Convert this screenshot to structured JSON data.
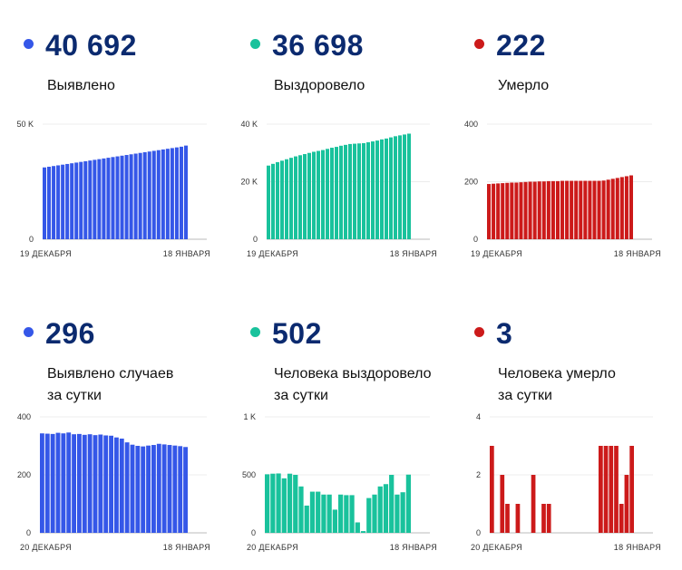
{
  "colors": {
    "blue": "#3557e8",
    "teal": "#19c29c",
    "red": "#cc1a1a"
  },
  "chart_data": [
    {
      "type": "bar",
      "id": "c1",
      "color": "#3557e8",
      "big": "40 692",
      "label_lines": [
        "Выявлено"
      ],
      "ylim": [
        0,
        50000
      ],
      "yticks": [
        {
          "v": 50000,
          "t": "50 K"
        },
        {
          "v": 0,
          "t": "0"
        }
      ],
      "x_start": "19 ДЕКАБРЯ",
      "x_end": "18 ЯНВАРЯ",
      "values": [
        31200,
        31500,
        31800,
        32100,
        32400,
        32700,
        33000,
        33300,
        33600,
        33900,
        34200,
        34500,
        34800,
        35100,
        35400,
        35700,
        36000,
        36300,
        36600,
        36900,
        37200,
        37500,
        37800,
        38100,
        38400,
        38700,
        39000,
        39300,
        39600,
        39900,
        40200,
        40692
      ]
    },
    {
      "type": "bar",
      "id": "c2",
      "color": "#19c29c",
      "big": "36 698",
      "label_lines": [
        "Выздоровело"
      ],
      "ylim": [
        0,
        40000
      ],
      "yticks": [
        {
          "v": 40000,
          "t": "40 K"
        },
        {
          "v": 20000,
          "t": "20 K"
        },
        {
          "v": 0,
          "t": "0"
        }
      ],
      "x_start": "19 ДЕКАБРЯ",
      "x_end": "18 ЯНВАРЯ",
      "values": [
        25600,
        26200,
        26800,
        27300,
        27800,
        28300,
        28800,
        29200,
        29600,
        30000,
        30400,
        30700,
        31000,
        31400,
        31800,
        32100,
        32500,
        32800,
        33100,
        33200,
        33300,
        33400,
        33700,
        34000,
        34300,
        34700,
        35000,
        35400,
        35800,
        36100,
        36400,
        36698
      ]
    },
    {
      "type": "bar",
      "id": "c3",
      "color": "#cc1a1a",
      "big": "222",
      "label_lines": [
        "Умерло"
      ],
      "ylim": [
        0,
        400
      ],
      "yticks": [
        {
          "v": 400,
          "t": "400"
        },
        {
          "v": 200,
          "t": "200"
        },
        {
          "v": 0,
          "t": "0"
        }
      ],
      "x_start": "19 ДЕКАБРЯ",
      "x_end": "18 ЯНВАРЯ",
      "values": [
        192,
        193,
        194,
        195,
        196,
        197,
        197,
        198,
        199,
        200,
        200,
        201,
        201,
        202,
        202,
        202,
        203,
        203,
        203,
        203,
        203,
        203,
        203,
        203,
        203,
        204,
        207,
        210,
        213,
        216,
        219,
        222
      ]
    },
    {
      "type": "bar",
      "id": "c4",
      "color": "#3557e8",
      "big": "296",
      "label_lines": [
        "Выявлено случаев",
        "за сутки"
      ],
      "ylim": [
        0,
        400
      ],
      "yticks": [
        {
          "v": 400,
          "t": "400"
        },
        {
          "v": 200,
          "t": "200"
        },
        {
          "v": 0,
          "t": "0"
        }
      ],
      "x_start": "20 ДЕКАБРЯ",
      "x_end": "18 ЯНВАРЯ",
      "values": [
        343,
        342,
        341,
        345,
        343,
        346,
        340,
        341,
        338,
        340,
        337,
        339,
        336,
        335,
        329,
        325,
        312,
        304,
        300,
        298,
        301,
        303,
        307,
        305,
        303,
        301,
        299,
        296
      ]
    },
    {
      "type": "bar",
      "id": "c5",
      "color": "#19c29c",
      "big": "502",
      "label_lines": [
        "Человека выздоровело",
        "за сутки"
      ],
      "ylim": [
        0,
        1000
      ],
      "yticks": [
        {
          "v": 1000,
          "t": "1 K"
        },
        {
          "v": 500,
          "t": "500"
        },
        {
          "v": 0,
          "t": "0"
        }
      ],
      "x_start": "20 ДЕКАБРЯ",
      "x_end": "18 ЯНВАРЯ",
      "values": [
        505,
        510,
        512,
        470,
        510,
        500,
        400,
        235,
        355,
        355,
        330,
        330,
        200,
        330,
        325,
        325,
        90,
        15,
        300,
        330,
        400,
        420,
        500,
        330,
        350,
        502
      ]
    },
    {
      "type": "bar",
      "id": "c6",
      "color": "#cc1a1a",
      "big": "3",
      "label_lines": [
        "Человека умерло",
        "за сутки"
      ],
      "ylim": [
        0,
        4
      ],
      "yticks": [
        {
          "v": 4,
          "t": "4"
        },
        {
          "v": 2,
          "t": "2"
        },
        {
          "v": 0,
          "t": "0"
        }
      ],
      "x_start": "20 ДЕКАБРЯ",
      "x_end": "18 ЯНВАРЯ",
      "values": [
        3,
        0,
        2,
        1,
        0,
        1,
        0,
        0,
        2,
        0,
        1,
        1,
        0,
        0,
        0,
        0,
        0,
        0,
        0,
        0,
        0,
        3,
        3,
        3,
        3,
        1,
        2,
        3
      ]
    }
  ]
}
